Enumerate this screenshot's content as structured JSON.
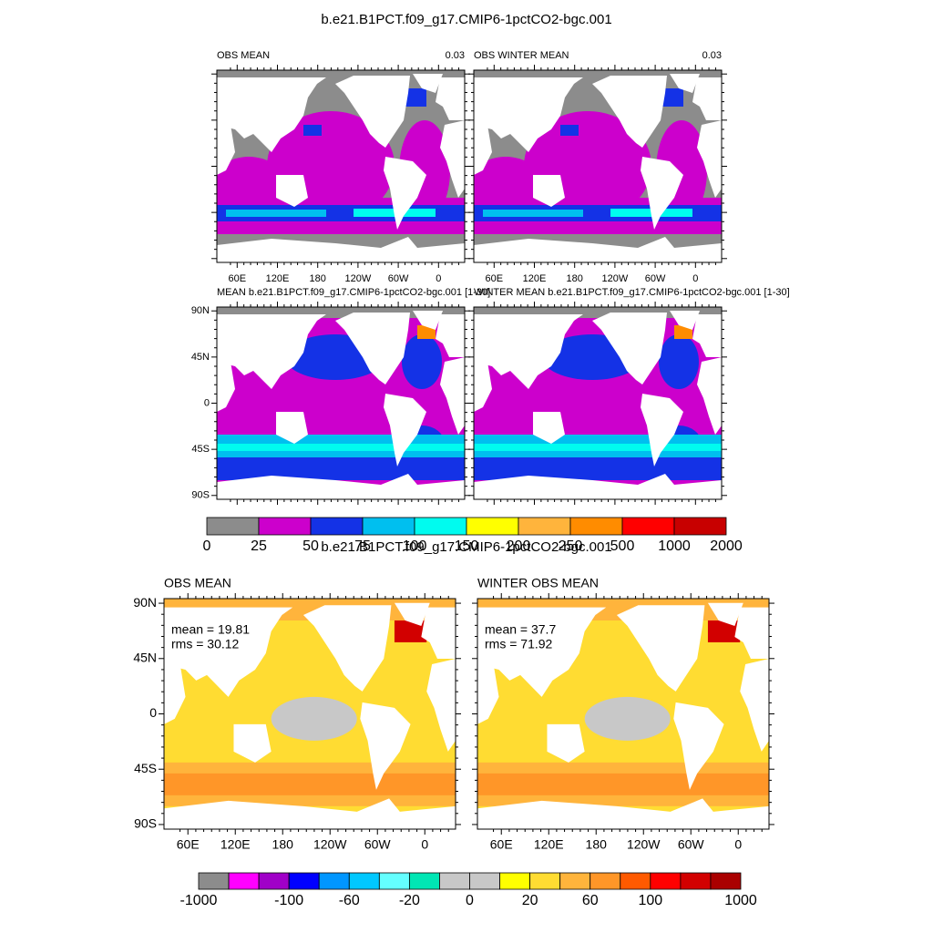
{
  "title": "b.e21.B1PCT.f09_g17.CMIP6-1pctCO2-bgc.001",
  "panels": [
    {
      "label": "OBS MEAN",
      "right_label": "0.03",
      "xticks": [
        "60E",
        "120E",
        "180",
        "120W",
        "60W",
        "0"
      ]
    },
    {
      "label": "OBS WINTER MEAN",
      "right_label": "0.03",
      "xticks": [
        "60E",
        "120E",
        "180",
        "120W",
        "60W",
        "0"
      ]
    },
    {
      "label": "MEAN b.e21.B1PCT.f09_g17.CMIP6-1pctCO2-bgc.001 [1-30]",
      "yticks": [
        "90N",
        "45N",
        "0",
        "45S",
        "90S"
      ]
    },
    {
      "label": "WINTER MEAN b.e21.B1PCT.f09_g17.CMIP6-1pctCO2-bgc.001 [1-30]"
    }
  ],
  "colorbar_1": {
    "labels": [
      "0",
      "25",
      "50",
      "75",
      "100",
      "150",
      "200",
      "250",
      "500",
      "1000",
      "2000"
    ]
  },
  "subtitle": "b.e21.B1PCT.f09_g17.CMIP6-1pctCO2-bgc.001",
  "panels_2": [
    {
      "label": "OBS MEAN",
      "stats": [
        "mean = 19.81",
        "rms = 30.12"
      ],
      "yticks": [
        "90N",
        "45N",
        "0",
        "45S",
        "90S"
      ],
      "xticks": [
        "60E",
        "120E",
        "180",
        "120W",
        "60W",
        "0"
      ]
    },
    {
      "label": "WINTER OBS MEAN",
      "stats": [
        "mean = 37.7",
        "rms = 71.92"
      ],
      "xticks": [
        "60E",
        "120E",
        "180",
        "120W",
        "60W",
        "0"
      ]
    }
  ],
  "colorbar_2": {
    "labels": [
      "-1000",
      "-100",
      "-60",
      "-20",
      "0",
      "20",
      "60",
      "100",
      "1000"
    ]
  }
}
